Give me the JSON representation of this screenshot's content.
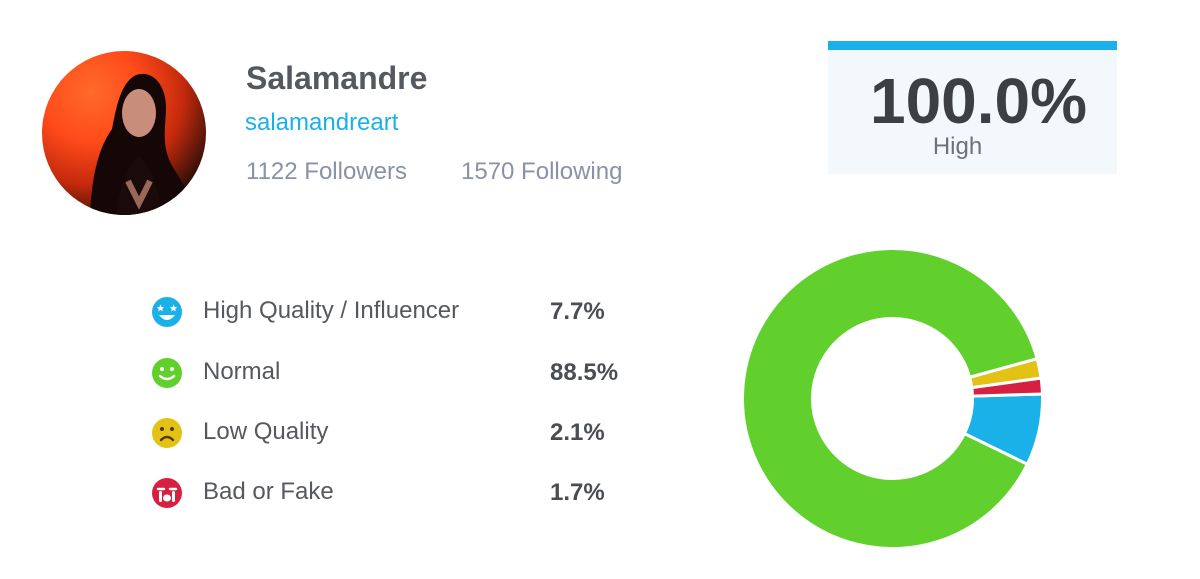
{
  "profile": {
    "name": "Salamandre",
    "handle": "salamandreart",
    "followers_text": "1122 Followers",
    "following_text": "1570 Following",
    "handle_color": "#1ab0e8"
  },
  "score": {
    "value": "100.0%",
    "label": "High",
    "bar_color": "#1ab0e8"
  },
  "legend": [
    {
      "label": "High Quality / Influencer",
      "value": "7.7%",
      "color": "#1ab0e8",
      "icon": "star-eyes-face-icon"
    },
    {
      "label": "Normal",
      "value": "88.5%",
      "color": "#61d02c",
      "icon": "smile-face-icon"
    },
    {
      "label": "Low Quality",
      "value": "2.1%",
      "color": "#e3c215",
      "icon": "sad-face-icon"
    },
    {
      "label": "Bad or Fake",
      "value": "1.7%",
      "color": "#d62040",
      "icon": "crying-face-icon"
    }
  ],
  "chart_data": {
    "type": "pie",
    "categories": [
      "High Quality / Influencer",
      "Normal",
      "Low Quality",
      "Bad or Fake"
    ],
    "values": [
      7.7,
      88.5,
      2.1,
      1.7
    ],
    "colors": [
      "#1ab0e8",
      "#61d02c",
      "#e3c215",
      "#d62040"
    ],
    "donut": true,
    "title": ""
  }
}
